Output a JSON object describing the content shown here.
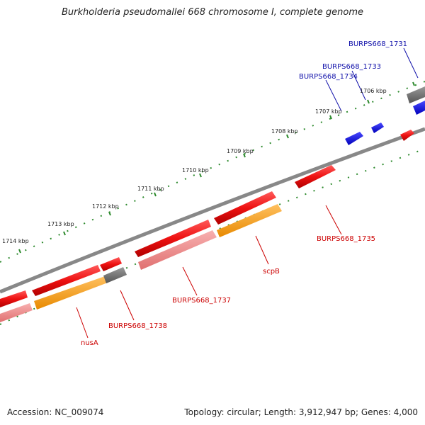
{
  "title": "Burkholderia pseudomallei 668 chromosome I, complete genome",
  "footer": {
    "accession": "Accession: NC_009074",
    "topology": "Topology: circular; Length: 3,912,947 bp; Genes: 4,000"
  },
  "colors": {
    "forward_cds": "#ee1111",
    "forward_cds_light": "#f08888",
    "rna_feature": "#ff9900",
    "pseudo": "#666666",
    "blue_feature": "#1111ee",
    "backbone": "#888888",
    "tick": "#2d8a2d",
    "label_red": "#cc0000",
    "label_blue": "#1111aa"
  },
  "kbp_labels": [
    "1706 kbp",
    "1707 kbp",
    "1708 kbp",
    "1709 kbp",
    "1710 kbp",
    "1711 kbp",
    "1712 kbp",
    "1713 kbp",
    "1714 kbp"
  ],
  "gene_labels": [
    {
      "text": "BURPS668_1731",
      "color": "blue"
    },
    {
      "text": "BURPS668_1733",
      "color": "blue"
    },
    {
      "text": "BURPS668_1734",
      "color": "blue"
    },
    {
      "text": "BURPS668_1735",
      "color": "red"
    },
    {
      "text": "scpB",
      "color": "red"
    },
    {
      "text": "BURPS668_1737",
      "color": "red"
    },
    {
      "text": "BURPS668_1738",
      "color": "red"
    },
    {
      "text": "nusA",
      "color": "red"
    }
  ]
}
